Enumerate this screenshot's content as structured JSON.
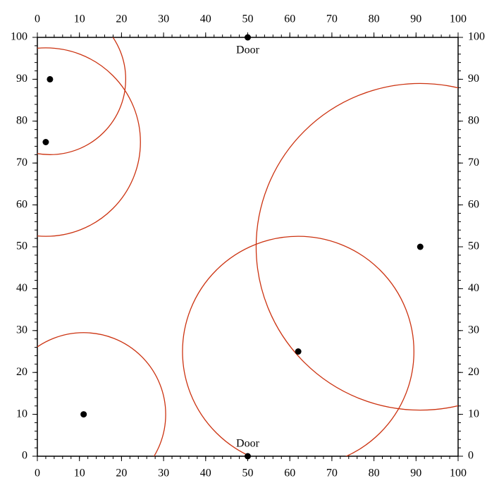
{
  "chart_data": {
    "type": "scatter",
    "x": [
      3,
      2,
      91,
      62,
      11
    ],
    "y": [
      90,
      75,
      50,
      25,
      10
    ],
    "radius": [
      18,
      22.5,
      39,
      27.5,
      19.5
    ],
    "color": "#000000",
    "circle_color": "#cc3311",
    "annotations": [
      {
        "text": "Door",
        "x": 50,
        "y": 100
      },
      {
        "text": "Door",
        "x": 50,
        "y": 0
      }
    ],
    "xlim": [
      0,
      100
    ],
    "ylim": [
      0,
      100
    ],
    "xticks": [
      0,
      10,
      20,
      30,
      40,
      50,
      60,
      70,
      80,
      90,
      100
    ],
    "yticks": [
      0,
      10,
      20,
      30,
      40,
      50,
      60,
      70,
      80,
      90,
      100
    ],
    "xminorticks": [
      0,
      2,
      4,
      6,
      8,
      10,
      12,
      14,
      16,
      18,
      20,
      22,
      24,
      26,
      28,
      30,
      32,
      34,
      36,
      38,
      40,
      42,
      44,
      46,
      48,
      50,
      52,
      54,
      56,
      58,
      60,
      62,
      64,
      66,
      68,
      70,
      72,
      74,
      76,
      78,
      80,
      82,
      84,
      86,
      88,
      90,
      92,
      94,
      96,
      98,
      100
    ],
    "yminorticks": [
      0,
      2,
      4,
      6,
      8,
      10,
      12,
      14,
      16,
      18,
      20,
      22,
      24,
      26,
      28,
      30,
      32,
      34,
      36,
      38,
      40,
      42,
      44,
      46,
      48,
      50,
      52,
      54,
      56,
      58,
      60,
      62,
      64,
      66,
      68,
      70,
      72,
      74,
      76,
      78,
      80,
      82,
      84,
      86,
      88,
      90,
      92,
      94,
      96,
      98,
      100
    ]
  }
}
